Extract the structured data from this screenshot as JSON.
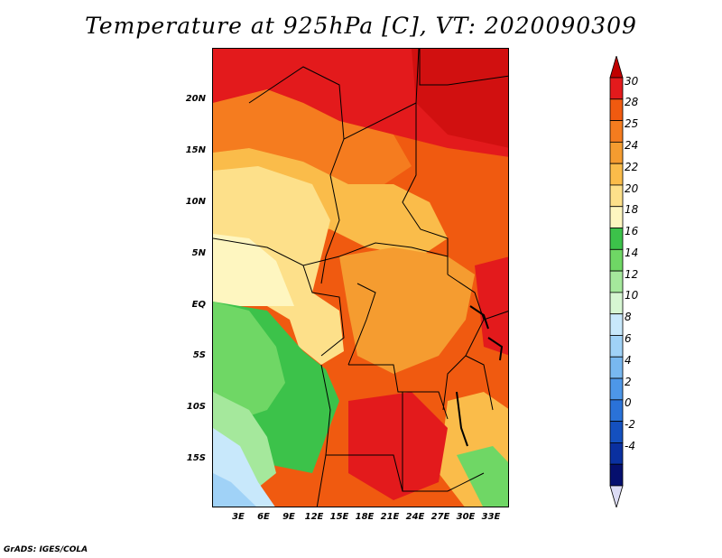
{
  "title": "Temperature at 925hPa [C], VT: 2020090309",
  "footer": "GrADS: IGES/COLA",
  "lat_labels": [
    "20N",
    "15N",
    "10N",
    "5N",
    "EQ",
    "5S",
    "10S",
    "15S"
  ],
  "lon_labels": [
    "3E",
    "6E",
    "9E",
    "12E",
    "15E",
    "18E",
    "21E",
    "24E",
    "27E",
    "30E",
    "33E"
  ],
  "colorbar": {
    "labels": [
      "30",
      "28",
      "25",
      "24",
      "22",
      "20",
      "18",
      "16",
      "14",
      "12",
      "10",
      "8",
      "6",
      "4",
      "2",
      "0",
      "-2",
      "-4"
    ],
    "colors": [
      "#c00000",
      "#e31a1c",
      "#f05a10",
      "#f57c1f",
      "#f59c30",
      "#fabc4a",
      "#fde08a",
      "#fef6c0",
      "#3cc24a",
      "#6fd765",
      "#a5e89c",
      "#d6f6d2",
      "#c8e8fb",
      "#a0d2f7",
      "#78b8f0",
      "#4d97e8",
      "#2a72d8",
      "#1450bf",
      "#0a30a0",
      "#050f6e",
      "#dcdcf5"
    ]
  }
}
